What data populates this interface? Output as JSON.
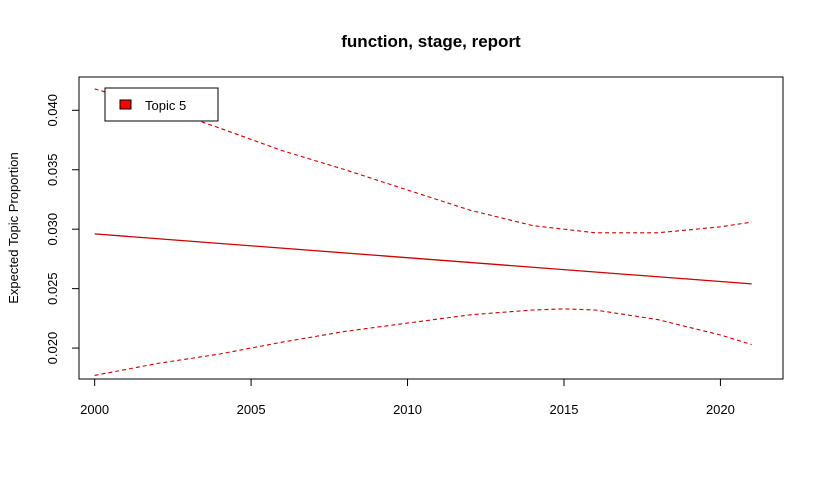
{
  "chart_data": {
    "type": "line",
    "title": "function, stage, report",
    "xlabel": "",
    "ylabel": "Expected Topic Proportion",
    "xlim": [
      1999.5,
      2022.0
    ],
    "ylim": [
      0.0174,
      0.0428
    ],
    "x_ticks": [
      2000,
      2005,
      2010,
      2015,
      2020
    ],
    "y_ticks": [
      0.02,
      0.025,
      0.03,
      0.035,
      0.04
    ],
    "y_tick_labels": [
      "0.020",
      "0.025",
      "0.030",
      "0.035",
      "0.040"
    ],
    "legend": {
      "position": "top-left",
      "entries": [
        {
          "label": "Topic 5",
          "color": "#ff0000"
        }
      ]
    },
    "series": [
      {
        "name": "Topic 5",
        "role": "estimate",
        "color": "#cc0000",
        "style": "solid",
        "x": [
          2000,
          2021
        ],
        "y": [
          0.0296,
          0.0254
        ]
      },
      {
        "role": "upper-ci",
        "color": "#cc0000",
        "style": "dashed",
        "x": [
          2000,
          2002,
          2004,
          2006,
          2008,
          2010,
          2012,
          2014,
          2016,
          2018,
          2020,
          2021
        ],
        "y": [
          0.0418,
          0.0403,
          0.0385,
          0.0366,
          0.035,
          0.0333,
          0.0316,
          0.0303,
          0.0297,
          0.0297,
          0.0302,
          0.0306
        ]
      },
      {
        "role": "lower-ci",
        "color": "#cc0000",
        "style": "dashed",
        "x": [
          2000,
          2002,
          2004,
          2006,
          2008,
          2010,
          2012,
          2014,
          2015,
          2016,
          2018,
          2020,
          2021
        ],
        "y": [
          0.0177,
          0.0187,
          0.0195,
          0.0205,
          0.0214,
          0.0221,
          0.0228,
          0.0232,
          0.0233,
          0.0232,
          0.0224,
          0.0211,
          0.0203
        ]
      }
    ]
  }
}
